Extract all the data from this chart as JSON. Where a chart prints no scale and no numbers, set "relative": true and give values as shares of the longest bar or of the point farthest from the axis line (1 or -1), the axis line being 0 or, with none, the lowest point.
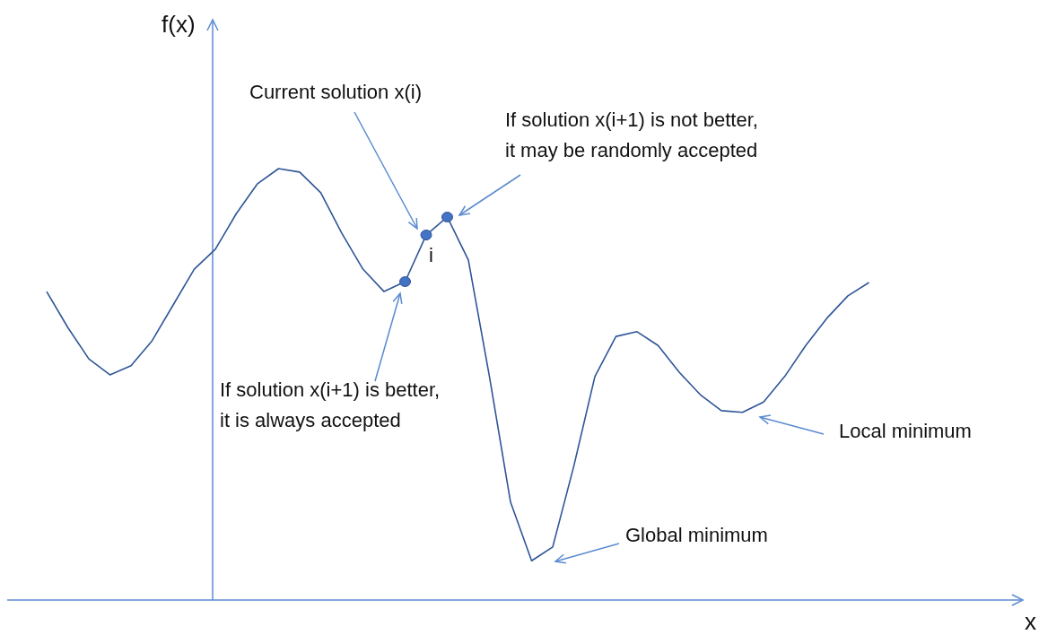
{
  "chart_data": {
    "type": "line",
    "relative": true,
    "categories": [
      null,
      null,
      null,
      null,
      null,
      null,
      null,
      null,
      null,
      null,
      null,
      null,
      null,
      null,
      null,
      null,
      null,
      null,
      null,
      null,
      null,
      null,
      null,
      null,
      null,
      null,
      null,
      null,
      null,
      null,
      null,
      null,
      null,
      null,
      null,
      null,
      null,
      null,
      null,
      null
    ],
    "series": [
      {
        "color": "#2f5597",
        "values": [
          0.715,
          0.632,
          0.559,
          0.522,
          0.543,
          0.601,
          0.684,
          0.767,
          0.813,
          0.896,
          0.965,
          1.0,
          0.992,
          0.944,
          0.85,
          0.767,
          0.715,
          0.738,
          0.846,
          0.888,
          0.788,
          0.518,
          0.227,
          0.091,
          0.123,
          0.31,
          0.518,
          0.611,
          0.622,
          0.59,
          0.528,
          0.476,
          0.439,
          0.435,
          0.459,
          0.518,
          0.59,
          0.653,
          0.705,
          0.736
        ]
      }
    ],
    "annotations": [
      "Current solution x(i)",
      "If solution x(i+1) is not better, it may be randomly accepted",
      "If solution x(i+1) is better, it is always accepted",
      "i",
      "Local minimum",
      "Global minimum",
      "f(x)",
      "x"
    ]
  }
}
